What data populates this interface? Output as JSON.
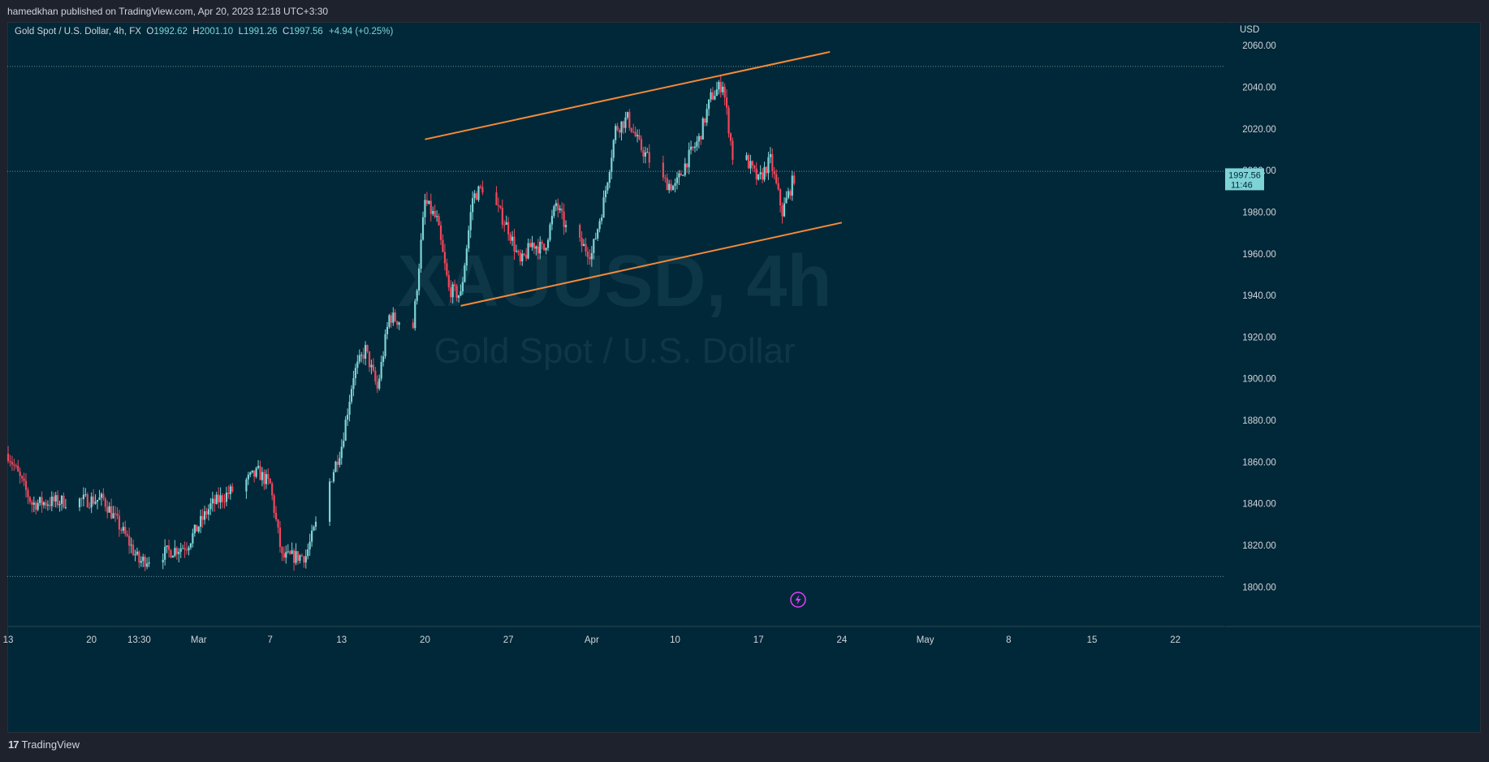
{
  "header": {
    "published_text": "hamedkhan published on TradingView.com, Apr 20, 2023 12:18 UTC+3:30"
  },
  "legend": {
    "symbol": "Gold Spot / U.S. Dollar, 4h, FX",
    "open_label": "O",
    "open": "1992.62",
    "high_label": "H",
    "high": "2001.10",
    "low_label": "L",
    "low": "1991.26",
    "close_label": "C",
    "close": "1997.56",
    "change": "+4.94 (+0.25%)"
  },
  "watermark": {
    "line1": "XAUUSD, 4h",
    "line2": "Gold Spot / U.S. Dollar"
  },
  "price_axis": {
    "currency": "USD",
    "last_price": "1997.56",
    "countdown": "11:46"
  },
  "footer": {
    "brand": "TradingView"
  },
  "colors": {
    "background": "#012838",
    "up": "#7ed3d6",
    "down": "#f0475b",
    "trendline": "#f5893a",
    "text": "#d1d4dc",
    "price_label_bg": "#7ed3d6"
  },
  "chart_data": {
    "type": "candlestick",
    "title": "XAUUSD, 4h",
    "subtitle": "Gold Spot / U.S. Dollar",
    "ylim": [
      1781,
      2071
    ],
    "yticks": [
      1800,
      1820,
      1840,
      1860,
      1880,
      1900,
      1920,
      1940,
      1960,
      1980,
      2000,
      2020,
      2040,
      2060
    ],
    "ytick_labels": [
      "1800.00",
      "1820.00",
      "1840.00",
      "1860.00",
      "1880.00",
      "1900.00",
      "1920.00",
      "1940.00",
      "1960.00",
      "1980.00",
      "2000.00",
      "2020.00",
      "2040.00",
      "2060.00"
    ],
    "x_ticks": [
      {
        "label": "13",
        "date": "2023-02-13"
      },
      {
        "label": "20",
        "date": "2023-02-20"
      },
      {
        "label": "13:30",
        "date": "2023-02-24"
      },
      {
        "label": "Mar",
        "date": "2023-03-01"
      },
      {
        "label": "7",
        "date": "2023-03-07"
      },
      {
        "label": "13",
        "date": "2023-03-13"
      },
      {
        "label": "20",
        "date": "2023-03-20"
      },
      {
        "label": "27",
        "date": "2023-03-27"
      },
      {
        "label": "Apr",
        "date": "2023-04-03"
      },
      {
        "label": "10",
        "date": "2023-04-10"
      },
      {
        "label": "17",
        "date": "2023-04-17"
      },
      {
        "label": "24",
        "date": "2023-04-24"
      },
      {
        "label": "May",
        "date": "2023-05-01"
      },
      {
        "label": "8",
        "date": "2023-05-08"
      },
      {
        "label": "15",
        "date": "2023-05-15"
      },
      {
        "label": "22",
        "date": "2023-05-22"
      }
    ],
    "last_price": 1997.56,
    "hlines": [
      2050,
      1999.6,
      1805
    ],
    "trendlines": [
      {
        "from": {
          "date": "2023-03-20",
          "price": 2015
        },
        "to": {
          "date": "2023-04-23",
          "price": 2057
        }
      },
      {
        "from": {
          "date": "2023-03-23",
          "price": 1935
        },
        "to": {
          "date": "2023-04-24",
          "price": 1975
        }
      }
    ],
    "anchors": [
      {
        "date": "2023-02-13",
        "price": 1864
      },
      {
        "date": "2023-02-15",
        "price": 1840
      },
      {
        "date": "2023-02-17",
        "price": 1841
      },
      {
        "date": "2023-02-21",
        "price": 1842
      },
      {
        "date": "2023-02-23",
        "price": 1823
      },
      {
        "date": "2023-02-24",
        "price": 1812
      },
      {
        "date": "2023-02-28",
        "price": 1820
      },
      {
        "date": "2023-03-02",
        "price": 1839
      },
      {
        "date": "2023-03-06",
        "price": 1855
      },
      {
        "date": "2023-03-07",
        "price": 1849
      },
      {
        "date": "2023-03-08",
        "price": 1814
      },
      {
        "date": "2023-03-10",
        "price": 1815
      },
      {
        "date": "2023-03-13",
        "price": 1868
      },
      {
        "date": "2023-03-14",
        "price": 1902
      },
      {
        "date": "2023-03-15",
        "price": 1914
      },
      {
        "date": "2023-03-16",
        "price": 1895
      },
      {
        "date": "2023-03-17",
        "price": 1930
      },
      {
        "date": "2023-03-19",
        "price": 1925
      },
      {
        "date": "2023-03-20",
        "price": 1985
      },
      {
        "date": "2023-03-21",
        "price": 1976
      },
      {
        "date": "2023-03-22",
        "price": 1943
      },
      {
        "date": "2023-03-23",
        "price": 1940
      },
      {
        "date": "2023-03-24",
        "price": 1987
      },
      {
        "date": "2023-03-25",
        "price": 1993
      },
      {
        "date": "2023-03-27",
        "price": 1972
      },
      {
        "date": "2023-03-28",
        "price": 1955
      },
      {
        "date": "2023-03-29",
        "price": 1965
      },
      {
        "date": "2023-03-30",
        "price": 1962
      },
      {
        "date": "2023-03-31",
        "price": 1984
      },
      {
        "date": "2023-04-01",
        "price": 1970
      },
      {
        "date": "2023-04-03",
        "price": 1960
      },
      {
        "date": "2023-04-04",
        "price": 1985
      },
      {
        "date": "2023-04-05",
        "price": 2020
      },
      {
        "date": "2023-04-06",
        "price": 2025
      },
      {
        "date": "2023-04-07",
        "price": 2012
      },
      {
        "date": "2023-04-09",
        "price": 1995
      },
      {
        "date": "2023-04-10",
        "price": 1992
      },
      {
        "date": "2023-04-11",
        "price": 2005
      },
      {
        "date": "2023-04-12",
        "price": 2015
      },
      {
        "date": "2023-04-13",
        "price": 2035
      },
      {
        "date": "2023-04-14",
        "price": 2042
      },
      {
        "date": "2023-04-15",
        "price": 2000
      },
      {
        "date": "2023-04-16",
        "price": 2005
      },
      {
        "date": "2023-04-17",
        "price": 1995
      },
      {
        "date": "2023-04-18",
        "price": 2005
      },
      {
        "date": "2023-04-19",
        "price": 1980
      },
      {
        "date": "2023-04-20",
        "price": 1997
      }
    ]
  }
}
